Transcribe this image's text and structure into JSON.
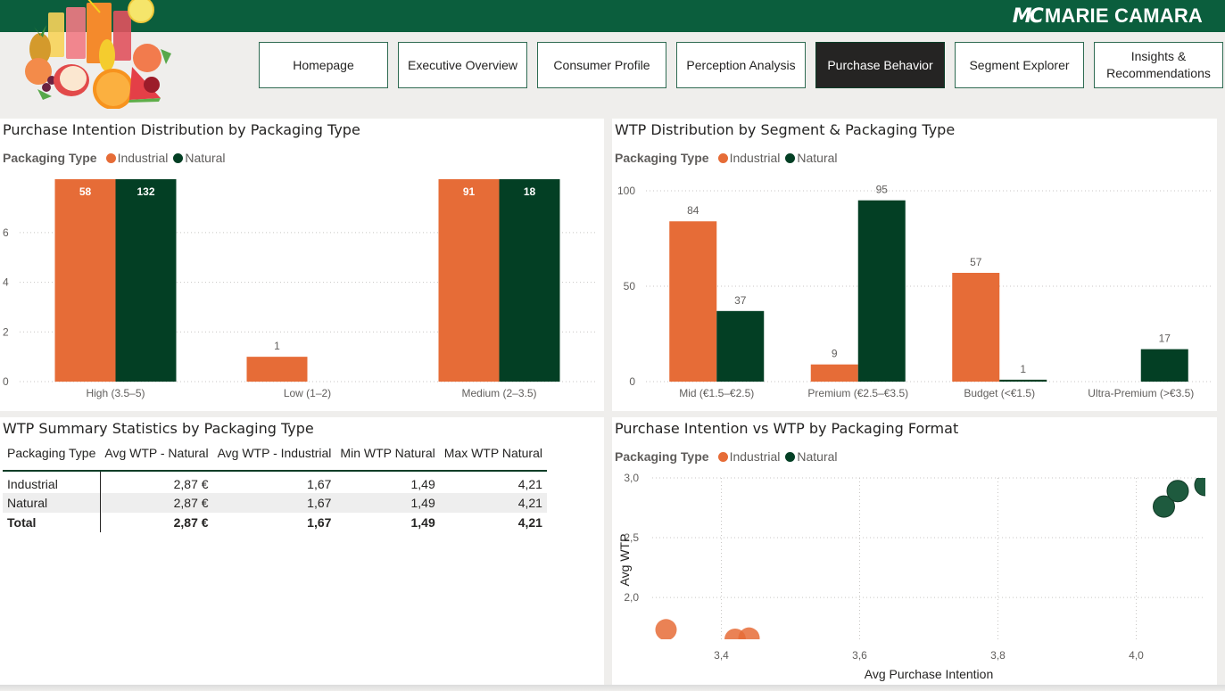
{
  "header": {
    "brand_logo": "MC",
    "brand_name": "MARIE CAMARA",
    "logo_image": "juice-fruits-image"
  },
  "nav": {
    "items": [
      {
        "label": "Homepage",
        "active": false
      },
      {
        "label": "Executive Overview",
        "active": false
      },
      {
        "label": "Consumer Profile",
        "active": false
      },
      {
        "label": "Perception Analysis",
        "active": false
      },
      {
        "label": "Purchase Behavior",
        "active": true
      },
      {
        "label": "Segment Explorer",
        "active": false
      },
      {
        "label": "Insights & Recommendations",
        "active": false
      }
    ]
  },
  "colors": {
    "industrial": "#e66c37",
    "natural": "#033f24",
    "natural_scatter": "#1e5a3e",
    "brand": "#0b5e3d"
  },
  "legend": {
    "title": "Packaging Type",
    "items": [
      "Industrial",
      "Natural"
    ]
  },
  "table": {
    "title": "WTP Summary Statistics by Packaging Type",
    "columns": [
      "Packaging Type",
      "Avg WTP - Natural",
      "Avg WTP - Industrial",
      "Min WTP Natural",
      "Max WTP Natural"
    ],
    "rows": [
      [
        "Industrial",
        "2,87 €",
        "1,67",
        "1,49",
        "4,21"
      ],
      [
        "Natural",
        "2,87 €",
        "1,67",
        "1,49",
        "4,21"
      ]
    ],
    "total": [
      "Total",
      "2,87 €",
      "1,67",
      "1,49",
      "4,21"
    ]
  },
  "chart_data": [
    {
      "type": "bar",
      "title": "Purchase Intention Distribution by Packaging Type",
      "legend_title": "Packaging Type",
      "categories": [
        "High (3.5–5)",
        "Low (1–2)",
        "Medium (2–3.5)"
      ],
      "series": [
        {
          "name": "Industrial",
          "values": [
            58,
            1,
            91
          ]
        },
        {
          "name": "Natural",
          "values": [
            132,
            null,
            18
          ]
        }
      ],
      "ylim": [
        0,
        7
      ],
      "yticks": [
        0,
        2,
        4,
        6
      ],
      "xlabel": "",
      "ylabel": "",
      "grid": true,
      "legend_position": "top-left",
      "note": "bars exceeding the axis range are clipped at the top"
    },
    {
      "type": "bar",
      "title": "WTP Distribution by Segment & Packaging Type",
      "legend_title": "Packaging Type",
      "categories": [
        "Mid (€1.5–€2.5)",
        "Premium (€2.5–€3.5)",
        "Budget (<€1.5)",
        "Ultra-Premium (>€3.5)"
      ],
      "series": [
        {
          "name": "Industrial",
          "values": [
            84,
            9,
            57,
            null
          ]
        },
        {
          "name": "Natural",
          "values": [
            37,
            95,
            1,
            17
          ]
        }
      ],
      "ylim": [
        0,
        100
      ],
      "yticks": [
        0,
        50,
        100
      ],
      "xlabel": "",
      "ylabel": "",
      "grid": true,
      "legend_position": "top-left"
    },
    {
      "type": "scatter",
      "title": "Purchase Intention vs WTP by Packaging Format",
      "legend_title": "Packaging Type",
      "xlabel": "Avg Purchase Intention",
      "ylabel": "Avg WTP",
      "xlim": [
        3.3,
        4.1
      ],
      "ylim": [
        1.65,
        3.0
      ],
      "xticks": [
        "3,4",
        "3,6",
        "3,8",
        "4,0"
      ],
      "xtick_values": [
        3.4,
        3.6,
        3.8,
        4.0
      ],
      "yticks": [
        "2,0",
        "2,5",
        "3,0"
      ],
      "ytick_values": [
        2.0,
        2.5,
        3.0
      ],
      "series": [
        {
          "name": "Industrial",
          "points": [
            [
              3.32,
              1.73
            ],
            [
              3.42,
              1.65
            ],
            [
              3.44,
              1.66
            ]
          ]
        },
        {
          "name": "Natural",
          "points": [
            [
              4.04,
              2.76
            ],
            [
              4.06,
              2.89
            ],
            [
              4.1,
              2.94
            ]
          ]
        }
      ],
      "grid": true,
      "legend_position": "top-left"
    }
  ]
}
